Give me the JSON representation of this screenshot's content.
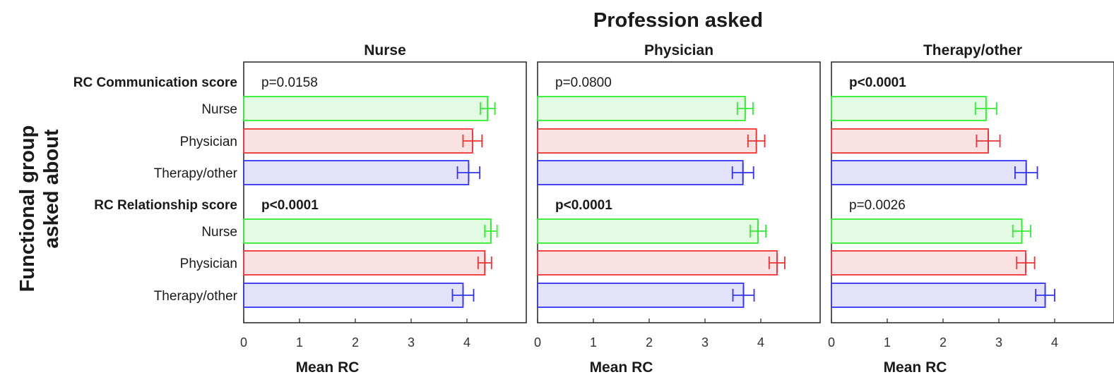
{
  "chart_data": {
    "type": "bar",
    "orientation": "horizontal",
    "title": "Profession asked",
    "ylabel_lines": [
      "Functional group",
      "asked about"
    ],
    "xlabel": "Mean RC",
    "xlim": [
      0,
      5
    ],
    "xticks": [
      "0",
      "1",
      "2",
      "3",
      "4"
    ],
    "groups": [
      "RC Communication score",
      "RC Relationship score"
    ],
    "categories": [
      "Nurse",
      "Physician",
      "Therapy/other"
    ],
    "colors": {
      "Nurse": {
        "fill": "#e2fbe2",
        "stroke": "#33ee33"
      },
      "Physician": {
        "fill": "#fbe2e2",
        "stroke": "#ee3333"
      },
      "Therapy/other": {
        "fill": "#e2e2fb",
        "stroke": "#3333ee"
      }
    },
    "panels": [
      {
        "title": "Nurse",
        "groups": [
          {
            "pvalue": "p=0.0158",
            "bold": false,
            "means": [
              4.37,
              4.1,
              4.03
            ],
            "errors": [
              0.13,
              0.17,
              0.2
            ]
          },
          {
            "pvalue": "p<0.0001",
            "bold": true,
            "means": [
              4.43,
              4.32,
              3.93
            ],
            "errors": [
              0.11,
              0.12,
              0.19
            ]
          }
        ]
      },
      {
        "title": "Physician",
        "groups": [
          {
            "pvalue": "p=0.0800",
            "bold": false,
            "means": [
              3.72,
              3.92,
              3.68
            ],
            "errors": [
              0.14,
              0.15,
              0.19
            ]
          },
          {
            "pvalue": "p<0.0001",
            "bold": true,
            "means": [
              3.95,
              4.29,
              3.69
            ],
            "errors": [
              0.14,
              0.14,
              0.19
            ]
          }
        ]
      },
      {
        "title": "Therapy/other",
        "groups": [
          {
            "pvalue": "p<0.0001",
            "bold": true,
            "means": [
              2.77,
              2.81,
              3.49
            ],
            "errors": [
              0.19,
              0.21,
              0.2
            ]
          },
          {
            "pvalue": "p=0.0026",
            "bold": false,
            "means": [
              3.41,
              3.48,
              3.83
            ],
            "errors": [
              0.16,
              0.16,
              0.17
            ]
          }
        ]
      }
    ]
  }
}
